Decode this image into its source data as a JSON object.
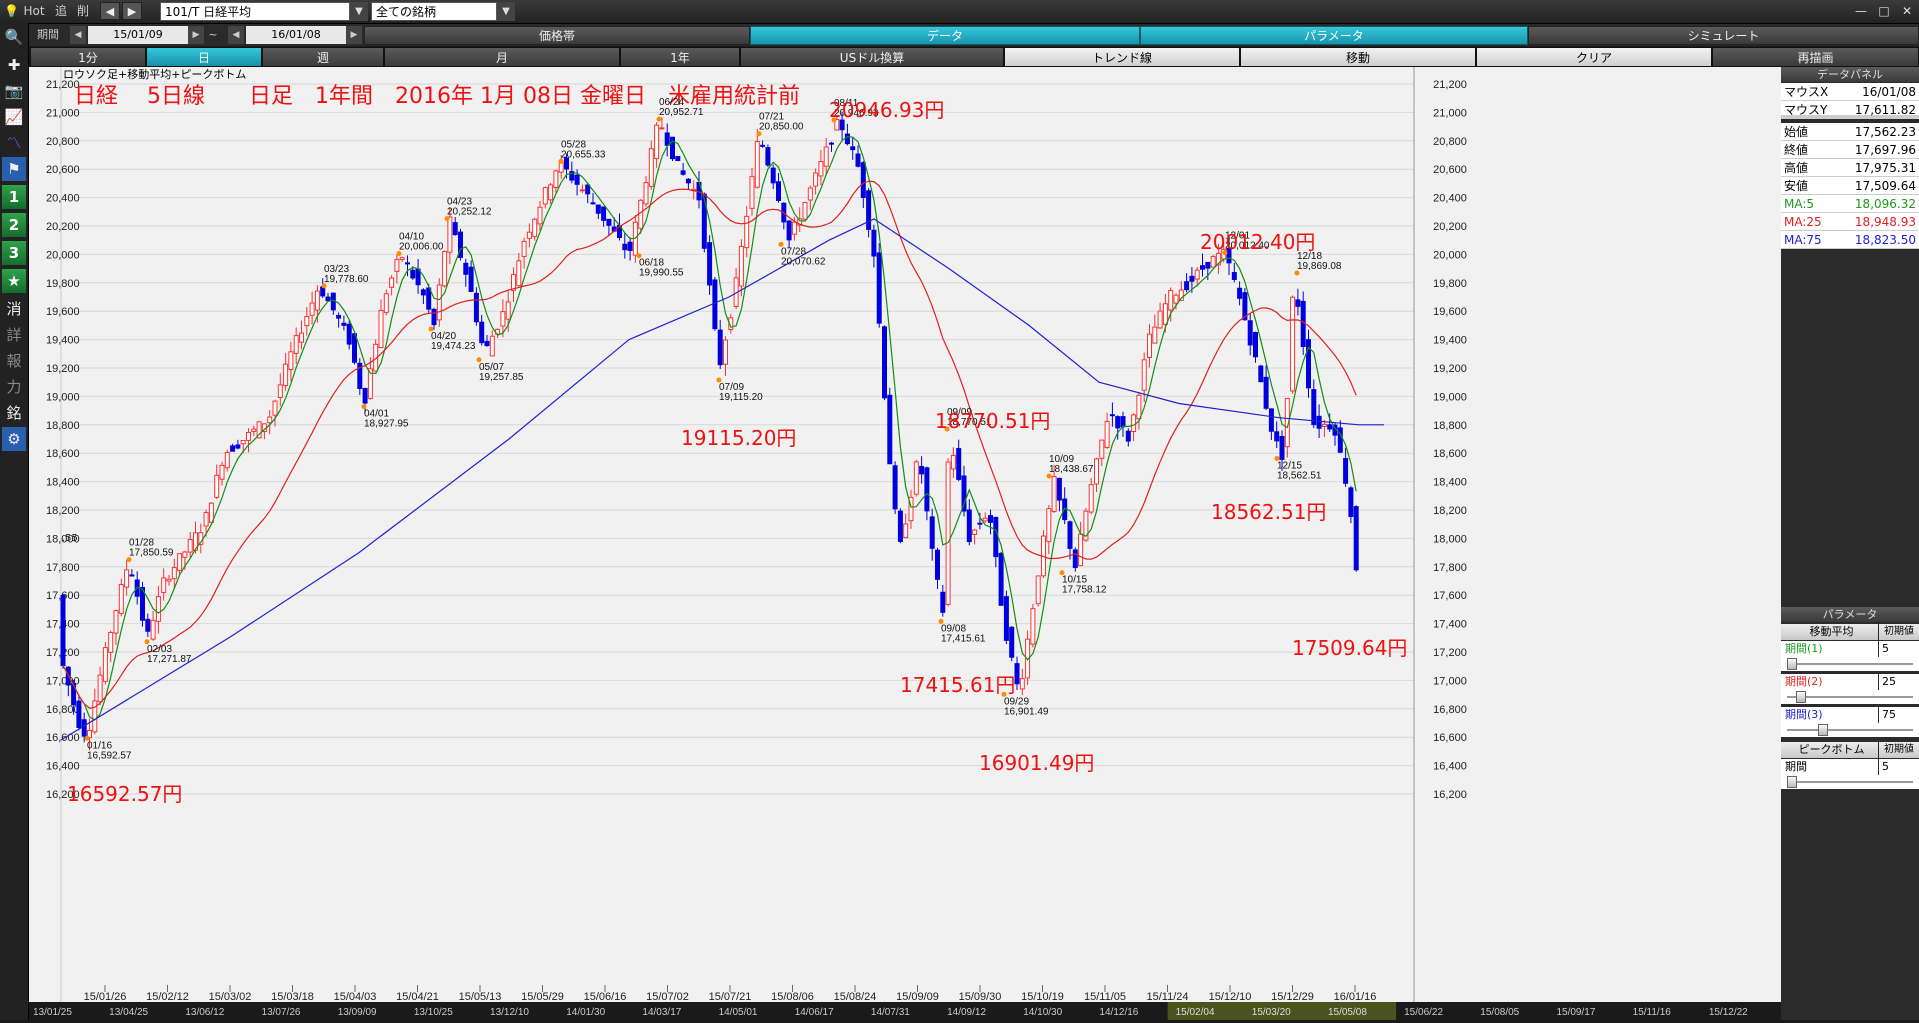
{
  "toolbar": {
    "hot": "Hot",
    "add": "追",
    "delete": "削",
    "symbol": "101/T 日経平均",
    "universe": "全ての銘柄"
  },
  "period_bar": {
    "label": "期間",
    "start": "15/01/09",
    "tilde": "~",
    "end": "16/01/08"
  },
  "top_tabs": [
    "価格帯",
    "データ",
    "パラメータ",
    "シミュレート"
  ],
  "interval_tabs": [
    "1分",
    "日",
    "週",
    "月",
    "1年",
    "USドル換算",
    "トレンド線",
    "移動",
    "クリア",
    "再描画"
  ],
  "chart_header": "ロウソク足+移動平均+ピークボトム",
  "chart_data": {
    "type": "candlestick",
    "title": "日経　 5日線　　日足　1年間　2016年 1月 08日 金曜日　米雇用統計前",
    "ylim": [
      16200,
      21300
    ],
    "y_ticks": [
      "21,200",
      "21,000",
      "20,800",
      "20,600",
      "20,400",
      "20,200",
      "20,000",
      "19,800",
      "19,600",
      "19,400",
      "19,200",
      "19,000",
      "18,800",
      "18,600",
      "18,400",
      "18,200",
      "18,000",
      "17,800",
      "17,600",
      "17,400",
      "17,200",
      "17,000",
      "16,800",
      "16,600",
      "16,400",
      "16,200"
    ],
    "x_ticks": [
      "15/01/26",
      "15/02/12",
      "15/03/02",
      "15/03/18",
      "15/04/03",
      "15/04/21",
      "15/05/13",
      "15/05/29",
      "15/06/16",
      "15/07/02",
      "15/07/21",
      "15/08/06",
      "15/08/24",
      "15/09/09",
      "15/09/30",
      "15/10/19",
      "15/11/05",
      "15/11/24",
      "15/12/10",
      "15/12/29",
      "16/01/16"
    ],
    "bottom_strip": [
      "13/01/25",
      "13/04/25",
      "13/06/12",
      "13/07/26",
      "13/09/09",
      "13/10/25",
      "13/12/10",
      "14/01/30",
      "14/03/17",
      "14/05/01",
      "14/06/17",
      "14/07/31",
      "14/09/12",
      "14/10/30",
      "14/12/16",
      "15/02/04",
      "15/03/20",
      "15/05/08",
      "15/06/22",
      "15/08/05",
      "15/09/17",
      "15/11/16",
      "15/12/22"
    ],
    "left_edge_label": ".55",
    "peak_bottom_marks": [
      {
        "date": "01/16",
        "value": "16,592.57"
      },
      {
        "date": "01/28",
        "value": "17,850.59"
      },
      {
        "date": "02/03",
        "value": "17,271.87"
      },
      {
        "date": "03/23",
        "value": "19,778.60"
      },
      {
        "date": "04/01",
        "value": "18,927.95"
      },
      {
        "date": "04/10",
        "value": "20,006.00"
      },
      {
        "date": "04/20",
        "value": "19,474.23"
      },
      {
        "date": "04/23",
        "value": "20,252.12"
      },
      {
        "date": "05/07",
        "value": "19,257.85"
      },
      {
        "date": "05/28",
        "value": "20,655.33"
      },
      {
        "date": "06/18",
        "value": "19,990.55"
      },
      {
        "date": "06/24",
        "value": "20,952.71"
      },
      {
        "date": "07/09",
        "value": "19,115.20"
      },
      {
        "date": "07/21",
        "value": "20,850.00"
      },
      {
        "date": "07/28",
        "value": "20,070.62"
      },
      {
        "date": "08/11",
        "value": "20,946.93"
      },
      {
        "date": "09/08",
        "value": "17,415.61"
      },
      {
        "date": "09/09",
        "value": "18,770.51"
      },
      {
        "date": "09/29",
        "value": "16,901.49"
      },
      {
        "date": "10/09",
        "value": "18,438.67"
      },
      {
        "date": "10/15",
        "value": "17,758.12"
      },
      {
        "date": "12/01",
        "value": "20,012.40"
      },
      {
        "date": "12/15",
        "value": "18,562.51"
      },
      {
        "date": "12/18",
        "value": "19,869.08"
      }
    ],
    "annotations": [
      "16592.57円",
      "20946.93円",
      "19115.20円",
      "18770.51円",
      "17415.61円",
      "16901.49円",
      "20012.40円",
      "18562.51円",
      "17509.64円"
    ],
    "colors": {
      "up": "#ff3030",
      "down": "#0000dd",
      "ma5": "#109010",
      "ma25": "#e02020",
      "ma75": "#2020d0",
      "annotation": "#ee1111",
      "background": "#f1f1f1"
    }
  },
  "data_panel": {
    "title": "データパネル",
    "rows": [
      {
        "k": "マウスX",
        "v": "16/01/08"
      },
      {
        "k": "マウスY",
        "v": "17,611.82"
      },
      {
        "k": "始値",
        "v": "17,562.23"
      },
      {
        "k": "終値",
        "v": "17,697.96"
      },
      {
        "k": "高値",
        "v": "17,975.31"
      },
      {
        "k": "安値",
        "v": "17,509.64"
      }
    ],
    "ma_rows": [
      {
        "k": "MA:5",
        "v": "18,096.32",
        "color": "#1a9a1a"
      },
      {
        "k": "MA:25",
        "v": "18,948.93",
        "color": "#e02020"
      },
      {
        "k": "MA:75",
        "v": "18,823.50",
        "color": "#2020d0"
      }
    ]
  },
  "parameter_panel": {
    "title": "パラメータ",
    "ma_header": "移動平均",
    "init_label": "初期値",
    "periods": [
      {
        "label": "期間(1)",
        "value": "5",
        "color": "#1a9a1a",
        "position": 0.0
      },
      {
        "label": "期間(2)",
        "value": "25",
        "color": "#e02020",
        "position": 0.08
      },
      {
        "label": "期間(3)",
        "value": "75",
        "color": "#2020d0",
        "position": 0.27
      }
    ],
    "peak_header": "ピークボトム",
    "peak_period_label": "期間",
    "peak_period_value": "5",
    "peak_position": 0.0
  }
}
